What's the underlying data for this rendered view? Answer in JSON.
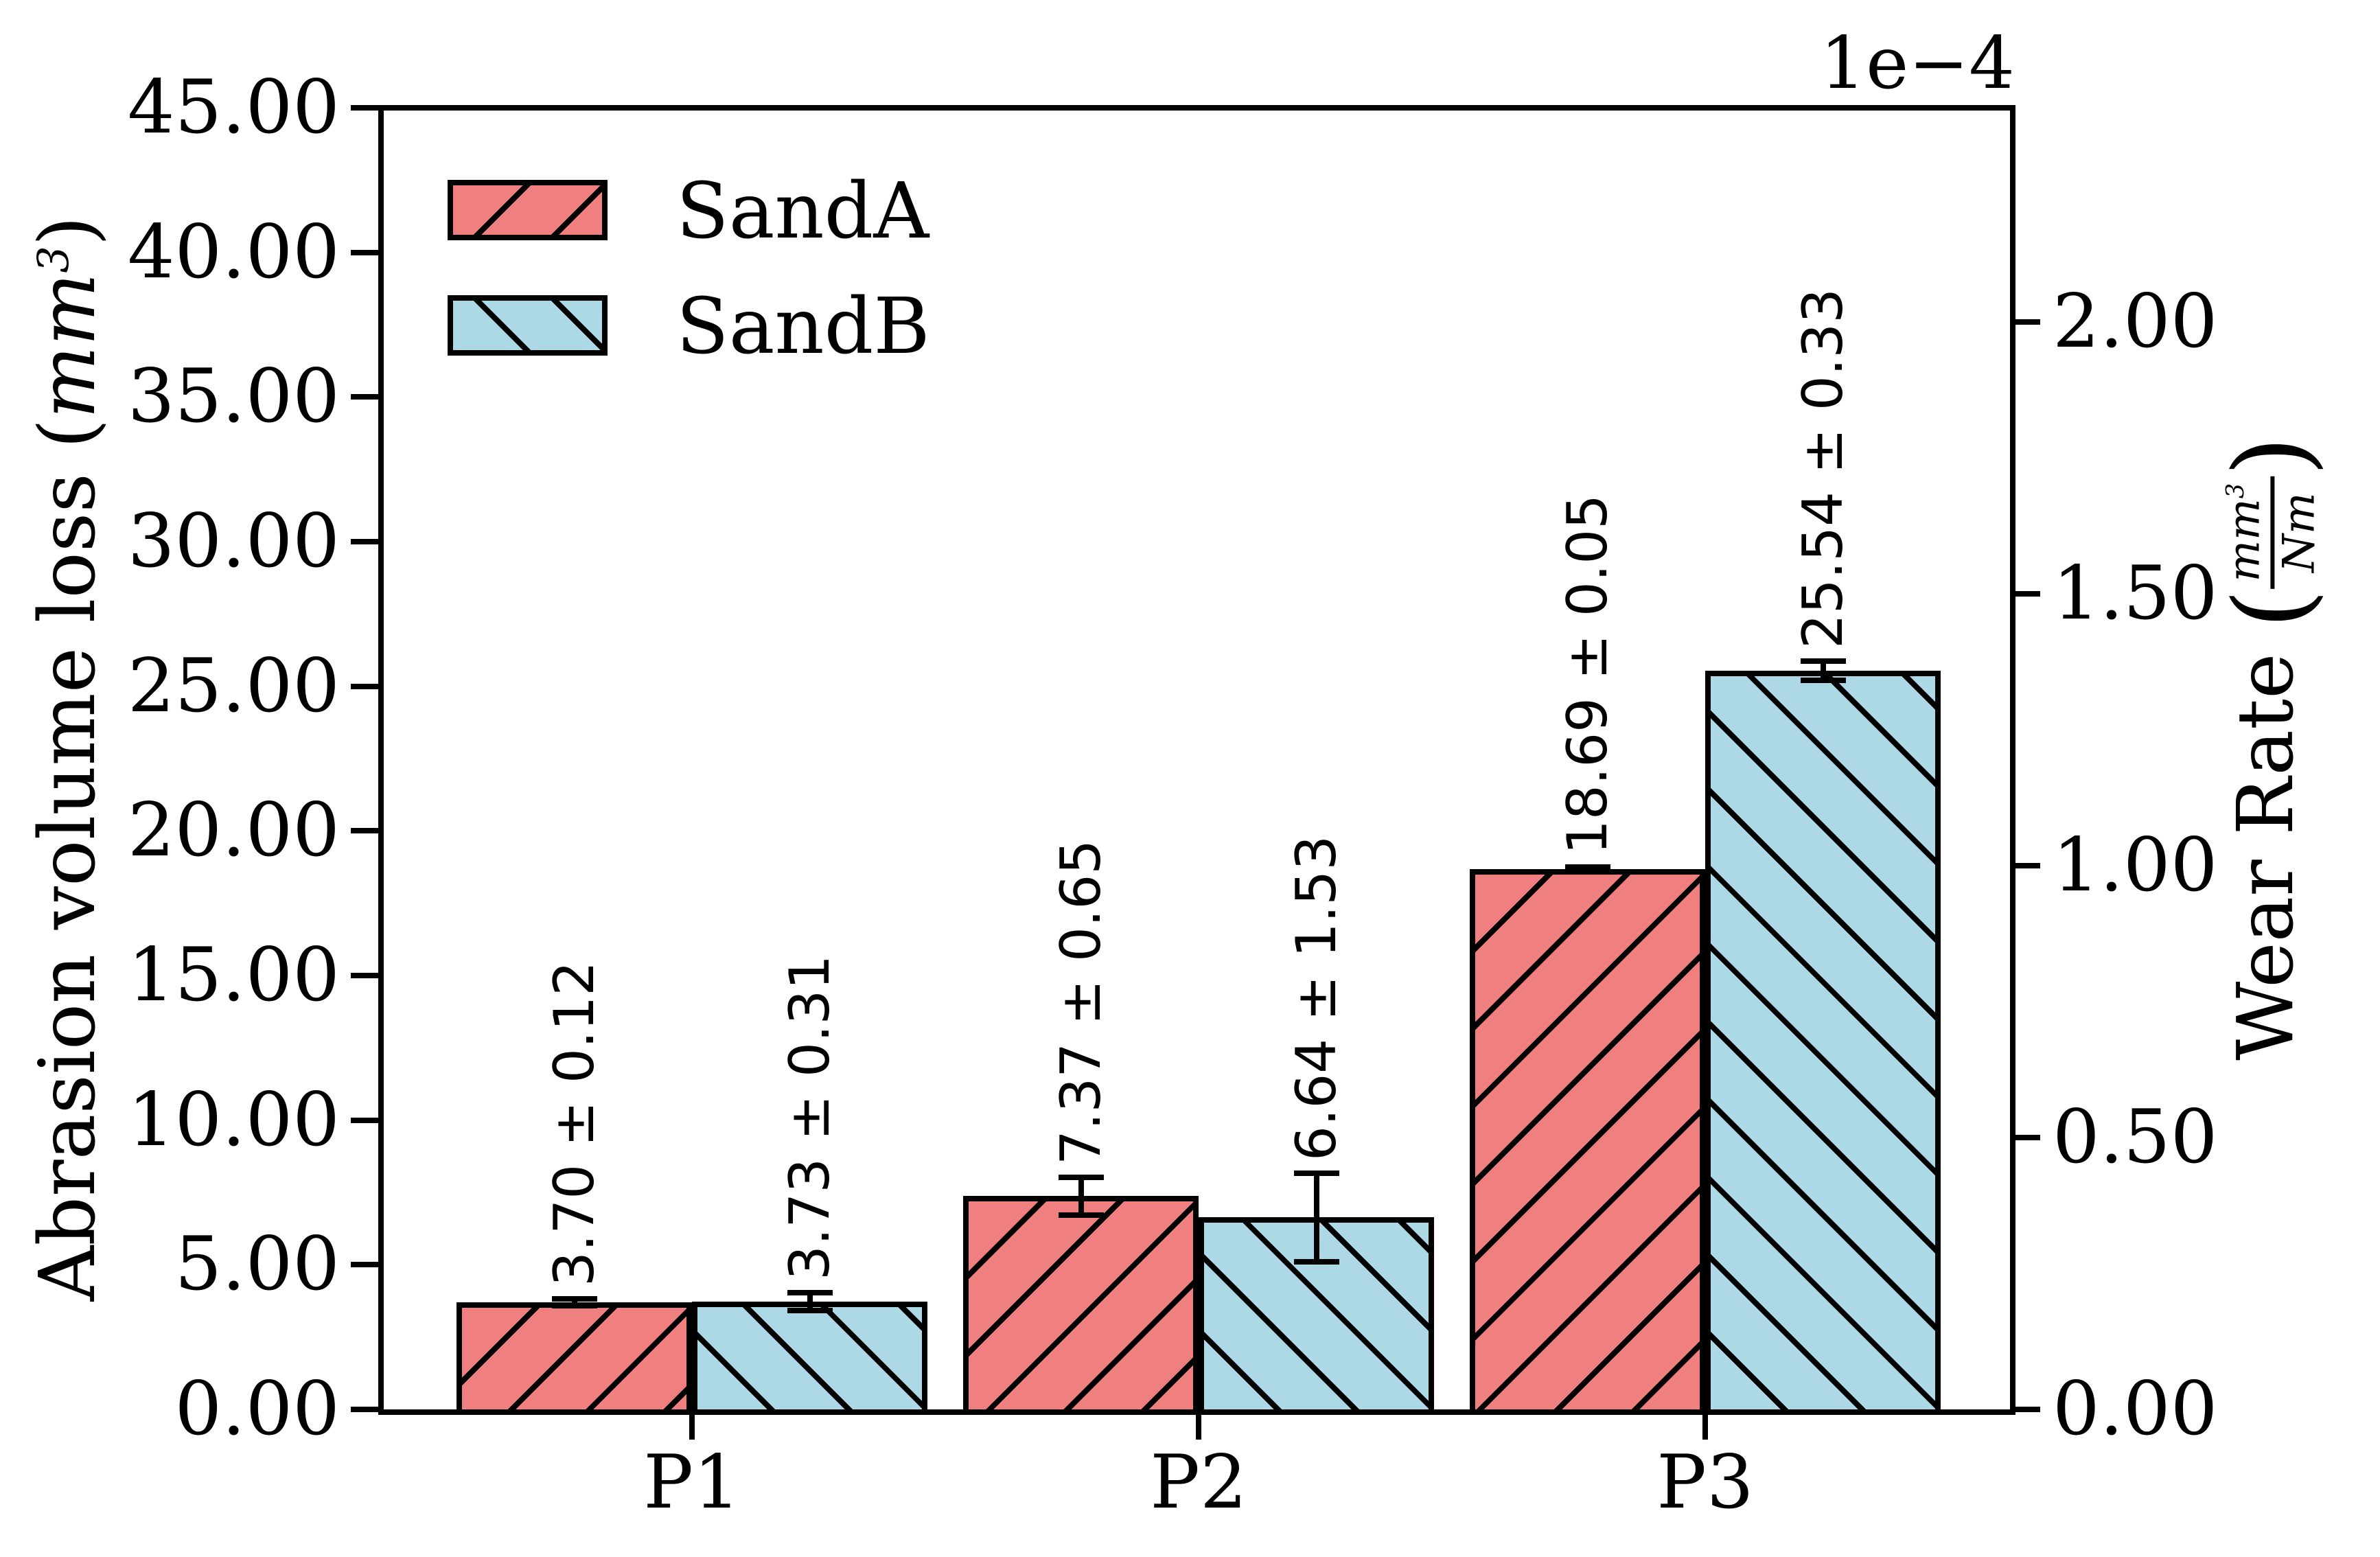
{
  "chart_data": {
    "type": "bar",
    "title": "",
    "categories": [
      "P1",
      "P2",
      "P3"
    ],
    "series": [
      {
        "name": "SandA",
        "color": "#F08080",
        "hatch": "/",
        "values": [
          3.7,
          7.37,
          18.69
        ],
        "errors": [
          0.12,
          0.65,
          0.05
        ],
        "bar_labels": [
          "3.70 ± 0.12",
          "7.37 ± 0.65",
          "18.69 ± 0.05"
        ]
      },
      {
        "name": "SandB",
        "color": "#ADD8E6",
        "hatch": "\\",
        "values": [
          3.73,
          6.64,
          25.54
        ],
        "errors": [
          0.31,
          1.53,
          0.33
        ],
        "bar_labels": [
          "3.73 ± 0.31",
          "6.64 ± 1.53",
          "25.54 ± 0.33"
        ]
      }
    ],
    "left_axis": {
      "label": "Abrasion volume loss (mm³)",
      "label_prefix": "Abrasion volume loss (",
      "unit_italic": "mm",
      "unit_exp": "3",
      "label_suffix": ")",
      "ticks": [
        "0.00",
        "5.00",
        "10.00",
        "15.00",
        "20.00",
        "25.00",
        "30.00",
        "35.00",
        "40.00",
        "45.00"
      ],
      "tick_values": [
        0,
        5,
        10,
        15,
        20,
        25,
        30,
        35,
        40,
        45
      ],
      "ylim": [
        0,
        45
      ]
    },
    "right_axis": {
      "label": "Wear Rate (mm³/Nm)",
      "label_prefix": "Wear Rate ",
      "paren_open": "(",
      "paren_close": ")",
      "frac_num_italic": "mm",
      "frac_num_exp": "3",
      "frac_den_italic": "Nm",
      "offset_text": "1e−4",
      "ticks": [
        "0.00",
        "0.50",
        "1.00",
        "1.50",
        "2.00"
      ],
      "tick_values": [
        0,
        0.5,
        1.0,
        1.5,
        2.0
      ],
      "ylim": [
        0,
        2.3944
      ]
    },
    "x_axis": {
      "tick_labels": [
        "P1",
        "P2",
        "P3"
      ]
    },
    "legend": {
      "entries": [
        "SandA",
        "SandB"
      ],
      "position": "upper-left",
      "frame": false
    },
    "grid": false,
    "error_bars": true,
    "edge_color": "#000000",
    "background_color": "#FFFFFF"
  }
}
